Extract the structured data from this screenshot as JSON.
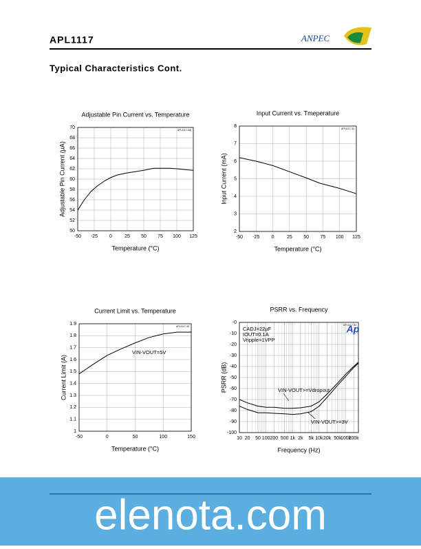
{
  "header": {
    "part": "APL1117",
    "logo": "ANPEC",
    "section": "Typical Characteristics Cont."
  },
  "watermark": "elenota.com",
  "chart_data": [
    {
      "type": "line",
      "title": "Adjustable Pin Current vs. Temperature",
      "note": "APL1117-Adj",
      "x_label": "Temperature (°C)",
      "y_label": "Adjustable Pin Current (µA)",
      "x": [
        -50,
        -40,
        -30,
        -20,
        -10,
        0,
        10,
        25,
        40,
        50,
        65,
        75,
        90,
        100,
        115,
        125
      ],
      "series": [
        {
          "color": "#000000",
          "values": [
            54,
            56,
            57.6,
            58.7,
            59.6,
            60.3,
            60.8,
            61.2,
            61.5,
            61.7,
            62.1,
            62.1,
            62.1,
            62,
            61.8,
            61.7
          ]
        }
      ],
      "xlim": [
        -50,
        125
      ],
      "xticks": [
        -50,
        -25,
        0,
        25,
        50,
        75,
        100,
        125
      ],
      "ylim": [
        50,
        70
      ],
      "yticks": [
        50,
        52,
        54,
        56,
        58,
        60,
        62,
        64,
        66,
        68,
        70
      ],
      "grid": true
    },
    {
      "type": "line",
      "title": "Input Current vs. Tmeperature",
      "note": "APL1117-33",
      "x_label": "Temperature (°C)",
      "y_label": "Input Current (mA)",
      "x": [
        -50,
        -25,
        0,
        25,
        50,
        70,
        100,
        125
      ],
      "series": [
        {
          "color": "#000000",
          "values": [
            6.2,
            6.0,
            5.75,
            5.4,
            5.05,
            4.75,
            4.45,
            4.15
          ]
        }
      ],
      "xlim": [
        -50,
        125
      ],
      "xticks": [
        -50,
        -25,
        0,
        25,
        50,
        75,
        100,
        125
      ],
      "ylim": [
        2,
        8
      ],
      "yticks": [
        2,
        3,
        4,
        5,
        6,
        7,
        8
      ],
      "grid": true
    },
    {
      "type": "line",
      "title": "Current Limit vs. Temperature",
      "note": "APL1117-33",
      "x_label": "Temperature (°C)",
      "y_label": "Current Limit (A)",
      "annotations": [
        "VIN-VOUT=5V"
      ],
      "x": [
        -50,
        -25,
        0,
        25,
        50,
        75,
        100,
        125,
        150
      ],
      "series": [
        {
          "color": "#000000",
          "values": [
            1.48,
            1.56,
            1.635,
            1.69,
            1.74,
            1.785,
            1.815,
            1.83,
            1.83
          ]
        }
      ],
      "xlim": [
        -50,
        150
      ],
      "xticks": [
        -50,
        0,
        50,
        100,
        150
      ],
      "ylim": [
        1,
        1.9
      ],
      "yticks": [
        1,
        1.1,
        1.2,
        1.3,
        1.4,
        1.5,
        1.6,
        1.7,
        1.8,
        1.9
      ],
      "grid": true
    },
    {
      "type": "line",
      "title": "PSRR vs. Frequency",
      "note": "APL1117-33",
      "x_label": "Frequency (Hz)",
      "y_label": "PSRR (dB)",
      "annotations": [
        "CADJ=22µF",
        "IOUT=0.1A",
        "Vripple=1VPP",
        "Ap"
      ],
      "xlog": true,
      "x": [
        10,
        20,
        50,
        100,
        200,
        500,
        1000,
        2000,
        5000,
        10000,
        20000,
        50000,
        100000,
        200000,
        300000
      ],
      "series": [
        {
          "name": "VIN-VOUT>=Vdropout",
          "color": "#000000",
          "values": [
            -70,
            -73,
            -76,
            -77,
            -77,
            -78,
            -78,
            -77.5,
            -76,
            -72,
            -65,
            -55,
            -47,
            -40,
            -36
          ]
        },
        {
          "name": "VIN-VOUT>=3V",
          "color": "#000000",
          "values": [
            -76,
            -79,
            -82,
            -82,
            -82.5,
            -83,
            -83.5,
            -83,
            -81,
            -76,
            -68,
            -57,
            -49,
            -41,
            -37
          ]
        }
      ],
      "xlim": [
        10,
        300000
      ],
      "xticks": [
        10,
        20,
        50,
        100,
        200,
        500,
        {
          "value": 1000,
          "label": "1k"
        },
        {
          "value": 2000,
          "label": "2k"
        },
        {
          "value": 5000,
          "label": "5k"
        },
        {
          "value": 10000,
          "label": "10k"
        },
        {
          "value": 20000,
          "label": "20k"
        },
        {
          "value": 50000,
          "label": "50k"
        },
        {
          "value": 100000,
          "label": "100k"
        },
        {
          "value": 200000,
          "label": "200k"
        }
      ],
      "ylim": [
        -100,
        0
      ],
      "yticks": [
        -100,
        -90,
        -80,
        -70,
        -60,
        -50,
        -40,
        -30,
        -20,
        -10,
        {
          "value": 0,
          "label": "-0"
        }
      ],
      "grid": true
    }
  ]
}
